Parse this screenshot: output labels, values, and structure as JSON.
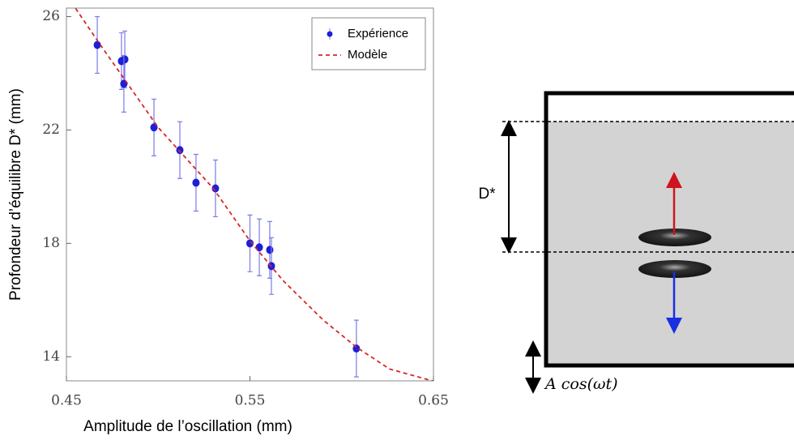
{
  "chart_data": {
    "type": "scatter",
    "xlabel": "Amplitude de l’oscillation (mm)",
    "ylabel": "Profondeur d’équilibre D* (mm)",
    "xlim": [
      0.45,
      0.65
    ],
    "ylim": [
      13.15,
      26.3
    ],
    "xticks": [
      0.45,
      0.55,
      0.65
    ],
    "yticks": [
      14,
      18,
      22,
      26
    ],
    "legend": "upper right",
    "series": [
      {
        "name": "Expérience",
        "color": "#1f1fd6",
        "x": [
          0.4668,
          0.48,
          0.4818,
          0.4813,
          0.4977,
          0.5118,
          0.5206,
          0.5312,
          0.55,
          0.5551,
          0.5608,
          0.5617,
          0.608
        ],
        "values": [
          25.0,
          24.43,
          24.49,
          23.63,
          22.09,
          21.29,
          20.14,
          19.94,
          18.0,
          17.86,
          17.77,
          17.2,
          14.29
        ],
        "errors": [
          1.0,
          1.0,
          1.0,
          1.0,
          1.0,
          1.0,
          1.0,
          1.0,
          1.0,
          1.0,
          1.0,
          1.0,
          1.0
        ]
      },
      {
        "name": "Modèle",
        "color": "#d62728",
        "line_style": "dashed",
        "x": [
          0.455,
          0.467,
          0.48,
          0.5,
          0.53,
          0.55,
          0.568,
          0.59,
          0.608,
          0.626,
          0.65
        ],
        "values": [
          26.29,
          25.14,
          23.94,
          22.09,
          19.94,
          18.09,
          16.69,
          15.29,
          14.34,
          13.57,
          13.14
        ]
      }
    ]
  },
  "diagram": {
    "depth_label": "D*",
    "drive_label": "A cos(ωt)"
  }
}
